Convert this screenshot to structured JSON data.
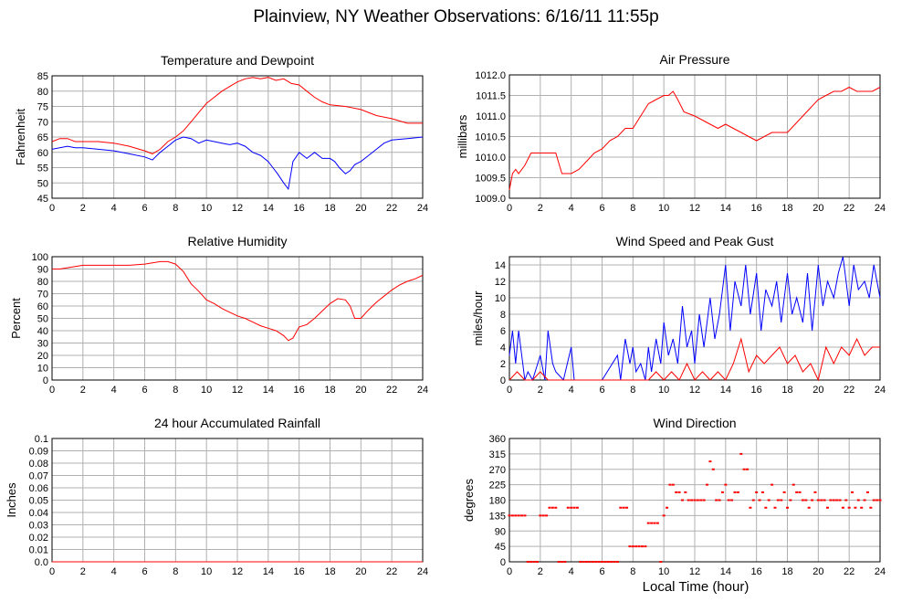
{
  "page": {
    "title": "Plainview, NY Weather Observations: 6/16/11 11:55p",
    "xlabel": "Local Time (hour)"
  },
  "colors": {
    "red": "#ff0000",
    "blue": "#0000ff",
    "grid": "#b0b0b0"
  },
  "chart_data": [
    {
      "id": "temp",
      "type": "line",
      "title": "Temperature and Dewpoint",
      "ylabel": "Fahrenheit",
      "xlim": [
        0,
        24
      ],
      "ylim": [
        45,
        85
      ],
      "xticks": [
        0,
        2,
        4,
        6,
        8,
        10,
        12,
        14,
        16,
        18,
        20,
        22,
        24
      ],
      "yticks": [
        45,
        50,
        55,
        60,
        65,
        70,
        75,
        80,
        85
      ],
      "grid": true,
      "series": [
        {
          "color": "red",
          "x": [
            0,
            0.5,
            1,
            1.5,
            2,
            3,
            4,
            5,
            6,
            6.5,
            7,
            7.5,
            8,
            8.5,
            9,
            9.5,
            10,
            10.5,
            11,
            11.5,
            12,
            12.5,
            13,
            13.5,
            14,
            14.5,
            15,
            15.5,
            16,
            16.5,
            17,
            17.5,
            18,
            19,
            20,
            21,
            22,
            23,
            24
          ],
          "y": [
            63.5,
            64.5,
            64.5,
            63.5,
            63.5,
            63.5,
            63,
            62,
            60.5,
            59.5,
            61,
            63.5,
            65,
            67,
            70,
            73,
            76,
            78,
            80,
            81.5,
            83,
            84,
            84.5,
            84,
            84.5,
            83.5,
            84,
            82.5,
            82,
            80,
            78,
            76.5,
            75.5,
            75,
            74,
            72,
            71,
            69.5,
            69.5
          ]
        },
        {
          "color": "blue",
          "x": [
            0,
            0.5,
            1,
            1.5,
            2,
            3,
            4,
            5,
            6,
            6.5,
            7,
            7.5,
            8,
            8.5,
            9,
            9.5,
            10,
            10.5,
            11,
            11.5,
            12,
            12.5,
            13,
            13.5,
            14,
            14.3,
            14.6,
            15,
            15.3,
            15.6,
            16,
            16.5,
            17,
            17.5,
            18,
            18.3,
            18.6,
            19,
            19.3,
            19.6,
            20,
            20.5,
            21,
            21.5,
            22,
            23,
            24
          ],
          "y": [
            61,
            61.5,
            62,
            61.5,
            61.5,
            61,
            60.5,
            59.5,
            58.5,
            57.5,
            60,
            62,
            64,
            65,
            64.5,
            63,
            64,
            63.5,
            63,
            62.5,
            63,
            62,
            60,
            59,
            57,
            55,
            53,
            50,
            48,
            57,
            60,
            58,
            60,
            58,
            58,
            57,
            55,
            53,
            54,
            56,
            57,
            59,
            61,
            63,
            64,
            64.5,
            65
          ]
        }
      ]
    },
    {
      "id": "pressure",
      "type": "line",
      "title": "Air Pressure",
      "ylabel": "millibars",
      "xlim": [
        0,
        24
      ],
      "ylim": [
        1009.0,
        1012.0
      ],
      "xticks": [
        0,
        2,
        4,
        6,
        8,
        10,
        12,
        14,
        16,
        18,
        20,
        22,
        24
      ],
      "yticks": [
        "1009.0",
        "1009.5",
        "1010.0",
        "1010.5",
        "1011.0",
        "1011.5",
        "1012.0"
      ],
      "grid": true,
      "series": [
        {
          "color": "red",
          "x": [
            0,
            0.2,
            0.4,
            0.6,
            1,
            1.4,
            3,
            3.4,
            4,
            4.5,
            5,
            5.5,
            6,
            6.5,
            7,
            7.5,
            8,
            8.5,
            9,
            9.5,
            10,
            10.3,
            10.6,
            10.9,
            11.3,
            12,
            12.5,
            13,
            13.5,
            14,
            14.5,
            15,
            15.5,
            16,
            17,
            18,
            18.5,
            19,
            19.5,
            20,
            20.5,
            21,
            21.5,
            22,
            22.5,
            23,
            23.5,
            24
          ],
          "y": [
            1009.2,
            1009.6,
            1009.7,
            1009.6,
            1009.8,
            1010.1,
            1010.1,
            1009.6,
            1009.6,
            1009.7,
            1009.9,
            1010.1,
            1010.2,
            1010.4,
            1010.5,
            1010.7,
            1010.7,
            1011.0,
            1011.3,
            1011.4,
            1011.5,
            1011.5,
            1011.6,
            1011.4,
            1011.1,
            1011.0,
            1010.9,
            1010.8,
            1010.7,
            1010.8,
            1010.7,
            1010.6,
            1010.5,
            1010.4,
            1010.6,
            1010.6,
            1010.8,
            1011.0,
            1011.2,
            1011.4,
            1011.5,
            1011.6,
            1011.6,
            1011.7,
            1011.6,
            1011.6,
            1011.6,
            1011.7
          ]
        }
      ]
    },
    {
      "id": "humidity",
      "type": "line",
      "title": "Relative Humidity",
      "ylabel": "Percent",
      "xlim": [
        0,
        24
      ],
      "ylim": [
        0,
        100
      ],
      "xticks": [
        0,
        2,
        4,
        6,
        8,
        10,
        12,
        14,
        16,
        18,
        20,
        22,
        24
      ],
      "yticks": [
        0,
        10,
        20,
        30,
        40,
        50,
        60,
        70,
        80,
        90,
        100
      ],
      "grid": true,
      "series": [
        {
          "color": "red",
          "x": [
            0,
            0.5,
            1,
            1.5,
            2,
            3,
            4,
            5,
            6,
            6.5,
            7,
            7.5,
            8,
            8.5,
            9,
            9.5,
            10,
            10.5,
            11,
            11.5,
            12,
            12.5,
            13,
            13.5,
            14,
            14.5,
            15,
            15.3,
            15.6,
            16,
            16.5,
            17,
            17.5,
            18,
            18.5,
            19,
            19.3,
            19.6,
            20,
            20.5,
            21,
            21.5,
            22,
            22.5,
            23,
            23.5,
            24
          ],
          "y": [
            90,
            90,
            91,
            92,
            93,
            93,
            93,
            93,
            94,
            95,
            96,
            96,
            94,
            88,
            78,
            72,
            65,
            62,
            58,
            55,
            52,
            50,
            47,
            44,
            42,
            40,
            36,
            32,
            34,
            43,
            45,
            50,
            56,
            62,
            66,
            65,
            60,
            50,
            50,
            57,
            63,
            68,
            73,
            77,
            80,
            82,
            85
          ]
        }
      ]
    },
    {
      "id": "wind",
      "type": "line",
      "title": "Wind Speed and Peak Gust",
      "ylabel": "miles/hour",
      "xlim": [
        0,
        24
      ],
      "ylim": [
        0,
        15
      ],
      "xticks": [
        0,
        2,
        4,
        6,
        8,
        10,
        12,
        14,
        16,
        18,
        20,
        22,
        24
      ],
      "yticks": [
        0,
        2,
        4,
        6,
        8,
        10,
        12,
        14
      ],
      "grid": true,
      "series": [
        {
          "color": "blue",
          "x": [
            0,
            0.2,
            0.4,
            0.6,
            0.8,
            1,
            1.2,
            1.5,
            2,
            2.3,
            2.5,
            2.8,
            3,
            3.5,
            4,
            4.2,
            4.5,
            5,
            6,
            7,
            7.2,
            7.5,
            7.8,
            8,
            8.2,
            8.5,
            8.8,
            9,
            9.2,
            9.5,
            9.8,
            10,
            10.3,
            10.6,
            10.9,
            11.2,
            11.5,
            11.8,
            12,
            12.3,
            12.6,
            13,
            13.3,
            13.6,
            14,
            14.3,
            14.6,
            15,
            15.3,
            15.6,
            16,
            16.3,
            16.6,
            17,
            17.3,
            17.6,
            18,
            18.3,
            18.6,
            19,
            19.3,
            19.6,
            20,
            20.3,
            20.6,
            21,
            21.3,
            21.6,
            22,
            22.3,
            22.6,
            23,
            23.3,
            23.6,
            24
          ],
          "y": [
            3,
            6,
            2,
            6,
            3,
            0,
            1,
            0,
            3,
            0,
            6,
            2,
            1,
            0,
            4,
            0,
            0,
            0,
            0,
            3,
            0,
            5,
            2,
            4,
            1,
            2,
            0,
            4,
            1,
            5,
            2,
            7,
            3,
            5,
            2,
            9,
            4,
            6,
            2,
            8,
            4,
            10,
            5,
            8,
            14,
            6,
            12,
            9,
            14,
            8,
            13,
            6,
            11,
            9,
            12,
            7,
            13,
            8,
            10,
            7,
            13,
            6,
            14,
            9,
            12,
            10,
            13,
            15,
            9,
            14,
            11,
            12,
            10,
            14,
            10
          ]
        },
        {
          "color": "red",
          "x": [
            0,
            0.5,
            1,
            1.5,
            2,
            2.5,
            3,
            4,
            5,
            6,
            7,
            8,
            9,
            9.5,
            10,
            10.5,
            11,
            11.5,
            12,
            12.5,
            13,
            13.5,
            14,
            14.5,
            15,
            15.5,
            16,
            16.5,
            17,
            17.5,
            18,
            18.5,
            19,
            19.5,
            20,
            20.5,
            21,
            21.5,
            22,
            22.5,
            23,
            23.5,
            24
          ],
          "y": [
            0,
            1,
            0,
            0,
            1,
            0,
            0,
            0,
            0,
            0,
            0,
            0,
            0,
            1,
            0,
            1,
            0,
            2,
            0,
            1,
            0,
            1,
            0,
            2,
            5,
            1,
            3,
            2,
            3,
            4,
            2,
            3,
            1,
            2,
            0,
            4,
            2,
            4,
            3,
            5,
            3,
            4,
            4
          ]
        }
      ]
    },
    {
      "id": "rain",
      "type": "line",
      "title": "24 hour Accumulated Rainfall",
      "ylabel": "Inches",
      "xlim": [
        0,
        24
      ],
      "ylim": [
        0,
        0.1
      ],
      "xticks": [
        0,
        2,
        4,
        6,
        8,
        10,
        12,
        14,
        16,
        18,
        20,
        22,
        24
      ],
      "yticks": [
        "0.0",
        "0.01",
        "0.02",
        "0.03",
        "0.04",
        "0.05",
        "0.06",
        "0.07",
        "0.08",
        "0.09",
        "0.1"
      ],
      "grid": true,
      "series": [
        {
          "color": "red",
          "x": [
            0,
            24
          ],
          "y": [
            0,
            0
          ]
        }
      ]
    },
    {
      "id": "direction",
      "type": "scatter",
      "title": "Wind Direction",
      "ylabel": "degrees",
      "xlim": [
        0,
        24
      ],
      "ylim": [
        0,
        360
      ],
      "xticks": [
        0,
        2,
        4,
        6,
        8,
        10,
        12,
        14,
        16,
        18,
        20,
        22,
        24
      ],
      "yticks": [
        0,
        45,
        90,
        135,
        180,
        225,
        270,
        315,
        360
      ],
      "grid": true,
      "series": [
        {
          "color": "red",
          "x": [
            0,
            0.2,
            0.4,
            0.6,
            0.8,
            1,
            1.2,
            1.4,
            1.6,
            1.8,
            2,
            2.2,
            2.4,
            2.6,
            2.8,
            3,
            3.2,
            3.4,
            3.6,
            3.8,
            4,
            4.2,
            4.4,
            4.6,
            4.8,
            5,
            5.2,
            5.4,
            5.6,
            5.8,
            6,
            6.2,
            6.4,
            6.6,
            6.8,
            7,
            7.2,
            7.4,
            7.6,
            7.8,
            8,
            8.2,
            8.4,
            8.6,
            8.8,
            9,
            9.2,
            9.4,
            9.6,
            9.8,
            10,
            10.2,
            10.4,
            10.6,
            10.8,
            11,
            11.2,
            11.4,
            11.6,
            11.8,
            12,
            12.2,
            12.4,
            12.6,
            12.8,
            13,
            13.2,
            13.4,
            13.6,
            13.8,
            14,
            14.2,
            14.4,
            14.6,
            14.8,
            15,
            15.2,
            15.4,
            15.6,
            15.8,
            16,
            16.2,
            16.4,
            16.6,
            16.8,
            17,
            17.2,
            17.4,
            17.6,
            17.8,
            18,
            18.2,
            18.4,
            18.6,
            18.8,
            19,
            19.2,
            19.4,
            19.6,
            19.8,
            20,
            20.2,
            20.4,
            20.6,
            20.8,
            21,
            21.2,
            21.4,
            21.6,
            21.8,
            22,
            22.2,
            22.4,
            22.6,
            22.8,
            23,
            23.2,
            23.4,
            23.6,
            23.8,
            24
          ],
          "y": [
            135,
            135,
            135,
            135,
            135,
            135,
            0,
            0,
            0,
            0,
            135,
            135,
            135,
            158,
            158,
            158,
            0,
            0,
            0,
            158,
            158,
            158,
            158,
            0,
            0,
            0,
            0,
            0,
            0,
            0,
            0,
            0,
            0,
            0,
            0,
            0,
            158,
            158,
            158,
            45,
            45,
            45,
            45,
            45,
            45,
            113,
            113,
            113,
            113,
            0,
            135,
            158,
            225,
            225,
            203,
            203,
            180,
            203,
            180,
            180,
            180,
            180,
            180,
            180,
            225,
            293,
            270,
            180,
            180,
            203,
            225,
            180,
            180,
            203,
            203,
            315,
            270,
            270,
            158,
            180,
            203,
            180,
            203,
            158,
            180,
            225,
            158,
            180,
            180,
            203,
            158,
            180,
            225,
            203,
            203,
            180,
            180,
            158,
            180,
            203,
            180,
            180,
            180,
            158,
            180,
            180,
            180,
            180,
            158,
            180,
            158,
            203,
            158,
            180,
            158,
            180,
            203,
            158,
            180,
            180,
            180
          ]
        }
      ]
    }
  ]
}
